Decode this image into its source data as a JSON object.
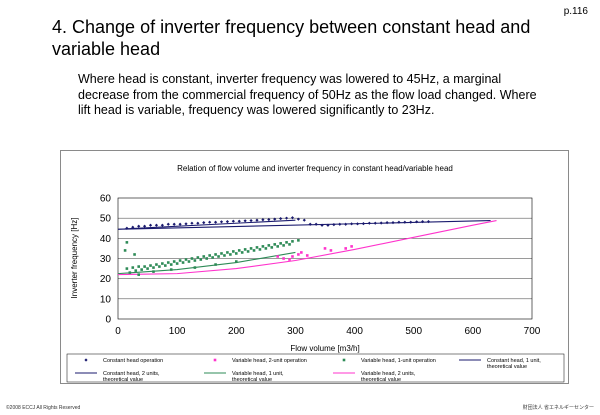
{
  "page_number": "p.116",
  "slide_title": "4. Change of inverter frequency between constant head and variable head",
  "body_text": "Where head is constant, inverter frequency was lowered to 45Hz, a marginal decrease from the commercial frequency of 50Hz as the flow load changed. Where lift head is variable, frequency was lowered significantly to 23Hz.",
  "footer": {
    "copyright": "©2008 ECCJ All Rights Reserved",
    "organization": "財団法人 省エネルギーセンター"
  },
  "chart_data": {
    "type": "scatter",
    "title": "Relation of flow volume and inverter frequency in constant head/variable head",
    "xlabel": "Flow volume [m3/h]",
    "ylabel": "Inverter frequency [Hz]",
    "xlim": [
      0,
      700
    ],
    "ylim": [
      0,
      60
    ],
    "xticks": [
      0,
      100,
      200,
      300,
      400,
      500,
      600,
      700
    ],
    "yticks": [
      0,
      10,
      20,
      30,
      40,
      50,
      60
    ],
    "grid": "horizontal",
    "legend_position": "bottom",
    "series": [
      {
        "name": "Constant head operation",
        "kind": "scatter",
        "marker": "diamond",
        "color": "#1a1a6e",
        "points": [
          [
            15,
            45
          ],
          [
            25,
            45.5
          ],
          [
            35,
            46
          ],
          [
            45,
            46
          ],
          [
            55,
            46.5
          ],
          [
            65,
            46.5
          ],
          [
            75,
            46.5
          ],
          [
            85,
            47
          ],
          [
            95,
            47
          ],
          [
            105,
            47
          ],
          [
            115,
            47.2
          ],
          [
            125,
            47.5
          ],
          [
            135,
            47.5
          ],
          [
            145,
            47.8
          ],
          [
            155,
            48
          ],
          [
            165,
            48
          ],
          [
            175,
            48.2
          ],
          [
            185,
            48.3
          ],
          [
            195,
            48.5
          ],
          [
            205,
            48.5
          ],
          [
            215,
            48.7
          ],
          [
            225,
            48.8
          ],
          [
            235,
            49
          ],
          [
            245,
            49.2
          ],
          [
            255,
            49.3
          ],
          [
            265,
            49.5
          ],
          [
            275,
            49.8
          ],
          [
            285,
            50
          ],
          [
            295,
            50.2
          ],
          [
            305,
            49.5
          ],
          [
            315,
            49
          ],
          [
            325,
            47
          ],
          [
            335,
            47
          ],
          [
            345,
            46.5
          ],
          [
            355,
            46.5
          ],
          [
            365,
            46.8
          ],
          [
            375,
            47
          ],
          [
            385,
            47
          ],
          [
            395,
            47.2
          ],
          [
            405,
            47.2
          ],
          [
            415,
            47.3
          ],
          [
            425,
            47.5
          ],
          [
            435,
            47.5
          ],
          [
            445,
            47.6
          ],
          [
            455,
            47.8
          ],
          [
            465,
            47.8
          ],
          [
            475,
            48
          ],
          [
            485,
            48
          ],
          [
            495,
            48
          ],
          [
            505,
            48.2
          ],
          [
            515,
            48.3
          ],
          [
            525,
            48.3
          ]
        ]
      },
      {
        "name": "Variable head, 2-unit operation",
        "kind": "scatter",
        "marker": "square",
        "color": "#ff33cc",
        "points": [
          [
            270,
            31
          ],
          [
            280,
            30
          ],
          [
            290,
            29.5
          ],
          [
            295,
            31
          ],
          [
            305,
            32
          ],
          [
            310,
            33
          ],
          [
            320,
            31.5
          ],
          [
            350,
            35
          ],
          [
            360,
            34
          ],
          [
            385,
            35
          ],
          [
            395,
            36
          ]
        ]
      },
      {
        "name": "Variable head, 1-unit operation",
        "kind": "scatter",
        "marker": "square",
        "color": "#2e8b57",
        "points": [
          [
            15,
            25
          ],
          [
            25,
            25.5
          ],
          [
            35,
            26
          ],
          [
            45,
            26
          ],
          [
            55,
            26.5
          ],
          [
            65,
            27
          ],
          [
            75,
            27.5
          ],
          [
            85,
            28
          ],
          [
            95,
            28.5
          ],
          [
            105,
            29
          ],
          [
            115,
            29.5
          ],
          [
            125,
            30
          ],
          [
            135,
            30.5
          ],
          [
            145,
            31
          ],
          [
            155,
            31.5
          ],
          [
            165,
            32
          ],
          [
            175,
            32.5
          ],
          [
            185,
            33
          ],
          [
            195,
            33.5
          ],
          [
            205,
            34
          ],
          [
            215,
            34.5
          ],
          [
            225,
            35
          ],
          [
            235,
            35.5
          ],
          [
            245,
            36
          ],
          [
            255,
            36.5
          ],
          [
            265,
            37
          ],
          [
            275,
            37.5
          ],
          [
            285,
            38
          ],
          [
            295,
            38.5
          ],
          [
            305,
            39
          ],
          [
            20,
            23
          ],
          [
            30,
            24
          ],
          [
            40,
            24.5
          ],
          [
            50,
            25
          ],
          [
            60,
            25.5
          ],
          [
            70,
            26
          ],
          [
            80,
            26.5
          ],
          [
            90,
            27
          ],
          [
            100,
            27.5
          ],
          [
            110,
            28
          ],
          [
            120,
            28.5
          ],
          [
            130,
            29
          ],
          [
            140,
            29.5
          ],
          [
            150,
            30
          ],
          [
            160,
            30.5
          ],
          [
            170,
            31
          ],
          [
            180,
            31.5
          ],
          [
            190,
            32
          ],
          [
            200,
            32.5
          ],
          [
            210,
            33
          ],
          [
            220,
            33.5
          ],
          [
            230,
            34
          ],
          [
            240,
            34.5
          ],
          [
            250,
            35
          ],
          [
            260,
            35.5
          ],
          [
            270,
            36
          ],
          [
            280,
            36.5
          ],
          [
            290,
            37
          ],
          [
            12,
            34
          ],
          [
            28,
            32
          ],
          [
            15,
            38
          ],
          [
            35,
            22
          ],
          [
            60,
            23.5
          ],
          [
            90,
            24.5
          ],
          [
            130,
            25.5
          ],
          [
            165,
            27
          ],
          [
            200,
            28.5
          ]
        ]
      },
      {
        "name": "Constant head, 1 unit, theoretical value",
        "kind": "line",
        "color": "#1a1a6e",
        "points": [
          [
            0,
            44.5
          ],
          [
            300,
            49
          ]
        ]
      },
      {
        "name": "Constant head, 2 units, theoretical value",
        "kind": "line",
        "color": "#1a1a6e",
        "points": [
          [
            0,
            44.5
          ],
          [
            630,
            48.8
          ]
        ]
      },
      {
        "name": "Variable head, 1 unit, theoretical value",
        "kind": "line",
        "color": "#2e8b57",
        "points": [
          [
            0,
            22.5
          ],
          [
            100,
            24.5
          ],
          [
            200,
            28
          ],
          [
            300,
            33
          ]
        ]
      },
      {
        "name": "Variable head, 2 units, theoretical value",
        "kind": "line",
        "color": "#ff33cc",
        "points": [
          [
            0,
            22
          ],
          [
            100,
            22.5
          ],
          [
            200,
            25
          ],
          [
            300,
            29
          ],
          [
            400,
            34.5
          ],
          [
            500,
            40.5
          ],
          [
            600,
            46.5
          ],
          [
            640,
            48.8
          ]
        ]
      }
    ]
  }
}
